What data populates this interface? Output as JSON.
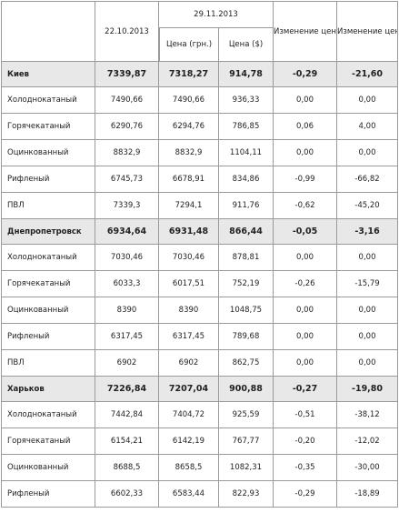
{
  "header": {
    "date1": "22.10.2013",
    "date2": "29.11.2013",
    "price_uah": "Цена (грн.)",
    "price_usd": "Цена ($)",
    "change_pct": "Изменение цены (%)",
    "change_uah": "Изменение цены (грн./т)"
  },
  "rows": [
    {
      "type": "region",
      "name": "Киев",
      "v1": "7339,87",
      "v2": "7318,27",
      "v3": "914,78",
      "v4": "-0,29",
      "v5": "-21,60"
    },
    {
      "type": "item",
      "name": "Холоднокатаный",
      "v1": "7490,66",
      "v2": "7490,66",
      "v3": "936,33",
      "v4": "0,00",
      "v5": "0,00"
    },
    {
      "type": "item",
      "name": "Горячекатаный",
      "v1": "6290,76",
      "v2": "6294,76",
      "v3": "786,85",
      "v4": "0,06",
      "v5": "4,00"
    },
    {
      "type": "item",
      "name": "Оцинкованный",
      "v1": "8832,9",
      "v2": "8832,9",
      "v3": "1104,11",
      "v4": "0,00",
      "v5": "0,00"
    },
    {
      "type": "item",
      "name": "Рифленый",
      "v1": "6745,73",
      "v2": "6678,91",
      "v3": "834,86",
      "v4": "-0,99",
      "v5": "-66,82"
    },
    {
      "type": "item",
      "name": "ПВЛ",
      "v1": "7339,3",
      "v2": "7294,1",
      "v3": "911,76",
      "v4": "-0,62",
      "v5": "-45,20"
    },
    {
      "type": "region",
      "name": "Днепропетровск",
      "v1": "6934,64",
      "v2": "6931,48",
      "v3": "866,44",
      "v4": "-0,05",
      "v5": "-3,16"
    },
    {
      "type": "item",
      "name": "Холоднокатаный",
      "v1": "7030,46",
      "v2": "7030,46",
      "v3": "878,81",
      "v4": "0,00",
      "v5": "0,00"
    },
    {
      "type": "item",
      "name": "Горячекатаный",
      "v1": "6033,3",
      "v2": "6017,51",
      "v3": "752,19",
      "v4": "-0,26",
      "v5": "-15,79"
    },
    {
      "type": "item",
      "name": "Оцинкованный",
      "v1": "8390",
      "v2": "8390",
      "v3": "1048,75",
      "v4": "0,00",
      "v5": "0,00"
    },
    {
      "type": "item",
      "name": "Рифленый",
      "v1": "6317,45",
      "v2": "6317,45",
      "v3": "789,68",
      "v4": "0,00",
      "v5": "0,00"
    },
    {
      "type": "item",
      "name": "ПВЛ",
      "v1": "6902",
      "v2": "6902",
      "v3": "862,75",
      "v4": "0,00",
      "v5": "0,00"
    },
    {
      "type": "region",
      "name": "Харьков",
      "v1": "7226,84",
      "v2": "7207,04",
      "v3": "900,88",
      "v4": "-0,27",
      "v5": "-19,80"
    },
    {
      "type": "item",
      "name": "Холоднокатаный",
      "v1": "7442,84",
      "v2": "7404,72",
      "v3": "925,59",
      "v4": "-0,51",
      "v5": "-38,12"
    },
    {
      "type": "item",
      "name": "Горячекатаный",
      "v1": "6154,21",
      "v2": "6142,19",
      "v3": "767,77",
      "v4": "-0,20",
      "v5": "-12,02"
    },
    {
      "type": "item",
      "name": "Оцинкованный",
      "v1": "8688,5",
      "v2": "8658,5",
      "v3": "1082,31",
      "v4": "-0,35",
      "v5": "-30,00"
    },
    {
      "type": "item",
      "name": "Рифленый",
      "v1": "6602,33",
      "v2": "6583,44",
      "v3": "822,93",
      "v4": "-0,29",
      "v5": "-18,89"
    }
  ]
}
